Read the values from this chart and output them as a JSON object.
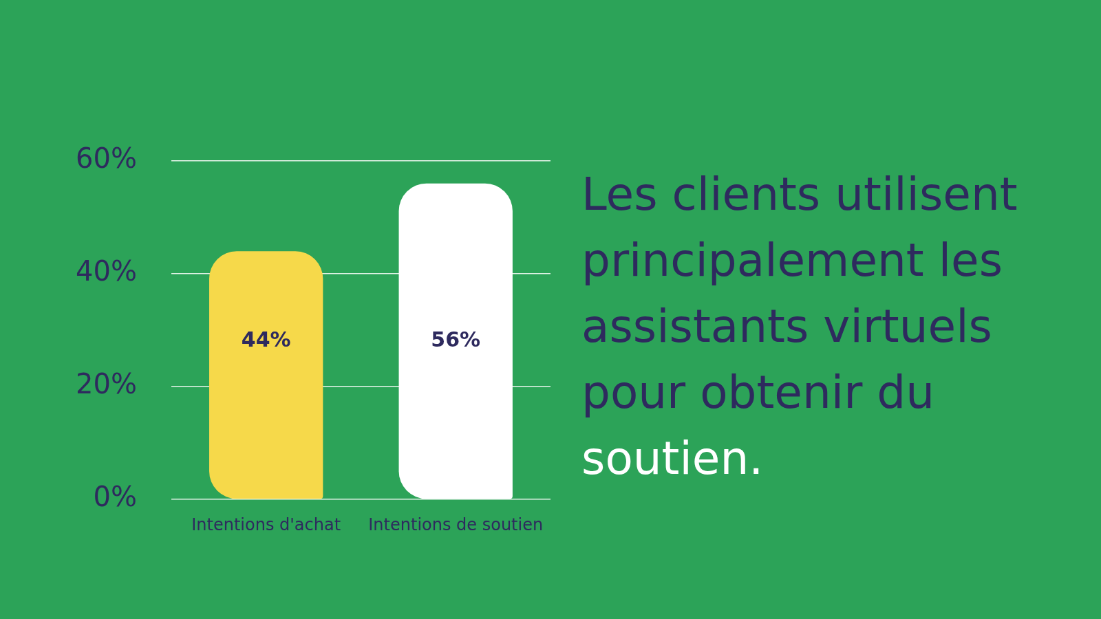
{
  "chart_data": {
    "type": "bar",
    "title": "Les clients utilisent principalement les assistants virtuels pour obtenir du soutien.",
    "categories": [
      "Intentions d'achat",
      "Intentions de soutien"
    ],
    "values": [
      44,
      56
    ],
    "colors": [
      "#f6d94a",
      "#ffffff"
    ],
    "ylim": [
      0,
      60
    ],
    "yticks": [
      {
        "value": 0,
        "label": "0%"
      },
      {
        "value": 20,
        "label": "20%"
      },
      {
        "value": 40,
        "label": "40%"
      },
      {
        "value": 60,
        "label": "60%"
      }
    ],
    "grid": "y",
    "data_labels": true,
    "value_labels": [
      "44%",
      "56%"
    ]
  }
}
